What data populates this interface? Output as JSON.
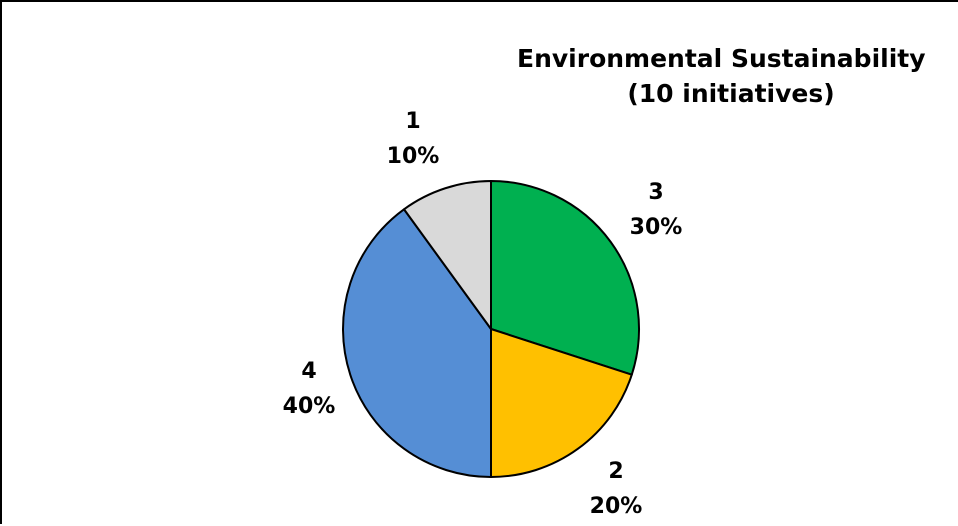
{
  "chart_data": {
    "type": "pie",
    "title": "Environmental Sustainability",
    "subtitle": "(10 initiatives)",
    "start_angle_deg": 0,
    "direction": "clockwise",
    "slices": [
      {
        "category": "3",
        "value": 3,
        "percent_label": "30%",
        "color": "#00b050"
      },
      {
        "category": "2",
        "value": 2,
        "percent_label": "20%",
        "color": "#ffc000"
      },
      {
        "category": "4",
        "value": 4,
        "percent_label": "40%",
        "color": "#558ed5"
      },
      {
        "category": "1",
        "value": 1,
        "percent_label": "10%",
        "color": "#d9d9d9"
      }
    ],
    "slice_border_color": "#000000"
  }
}
